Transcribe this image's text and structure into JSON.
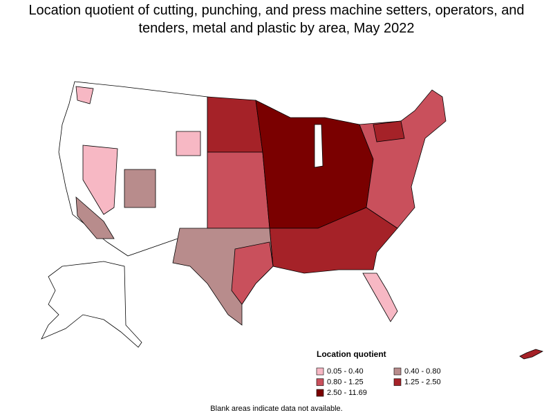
{
  "title": "Location quotient of cutting, punching, and press machine setters, operators, and tenders, metal and plastic by area, May 2022",
  "legend": {
    "title": "Location quotient",
    "items": [
      {
        "label": "0.05 - 0.40",
        "color": "#f7b8c4"
      },
      {
        "label": "0.40 - 0.80",
        "color": "#b88c8c"
      },
      {
        "label": "0.80 - 1.25",
        "color": "#c9505c"
      },
      {
        "label": "1.25 - 2.50",
        "color": "#a52228"
      },
      {
        "label": "2.50 - 11.69",
        "color": "#7a0000"
      }
    ]
  },
  "footnote": "Blank areas indicate data not available."
}
